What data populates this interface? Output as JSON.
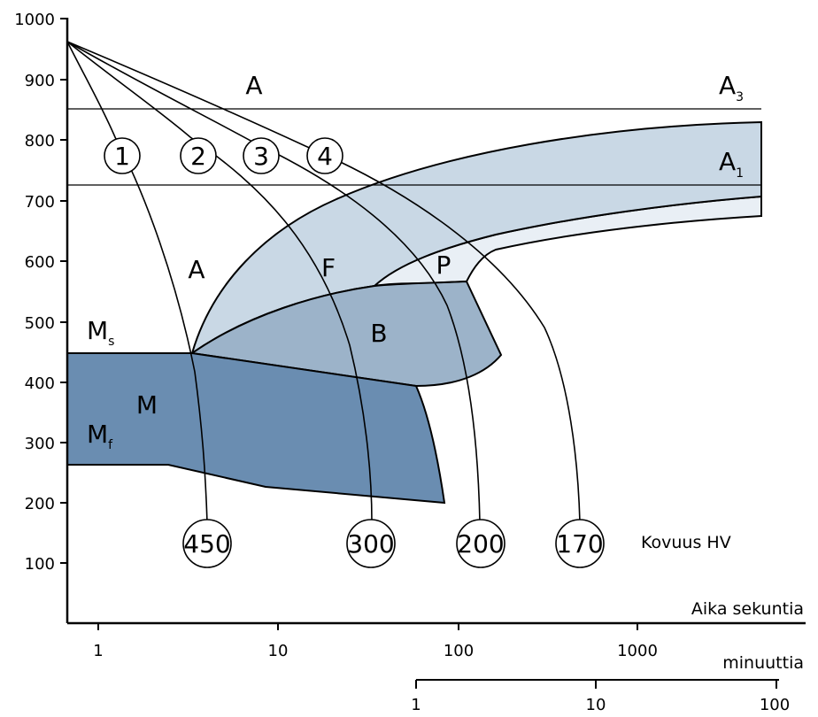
{
  "y_ticks": [
    "1000",
    "900",
    "800",
    "700",
    "600",
    "500",
    "400",
    "300",
    "200",
    "100"
  ],
  "x_ticks_seconds": [
    "1",
    "10",
    "100",
    "1000"
  ],
  "x_ticks_minutes": [
    "1",
    "10",
    "100"
  ],
  "x_axis_label_seconds": "Aika sekuntia",
  "x_axis_label_minutes": "minuuttia",
  "hardness_label": "Kovuus HV",
  "line_labels": {
    "a3_main": "A",
    "a3_sub": "3",
    "a1_main": "A",
    "a1_sub": "1"
  },
  "regions": {
    "austenite_top": "A",
    "austenite_mid": "A",
    "ferrite": "F",
    "pearlite": "P",
    "bainite": "B",
    "martensite": "M",
    "ms_main": "M",
    "ms_sub": "s",
    "mf_main": "M",
    "mf_sub": "f"
  },
  "cooling_curves": [
    "1",
    "2",
    "3",
    "4"
  ],
  "hardness_values": [
    "450",
    "300",
    "200",
    "170"
  ],
  "colors": {
    "martensite": "#6a8db1",
    "bainite": "#9cb3c9",
    "ferrite": "#c9d8e5",
    "pearlite": "#e9eff5",
    "line": "#000000"
  }
}
